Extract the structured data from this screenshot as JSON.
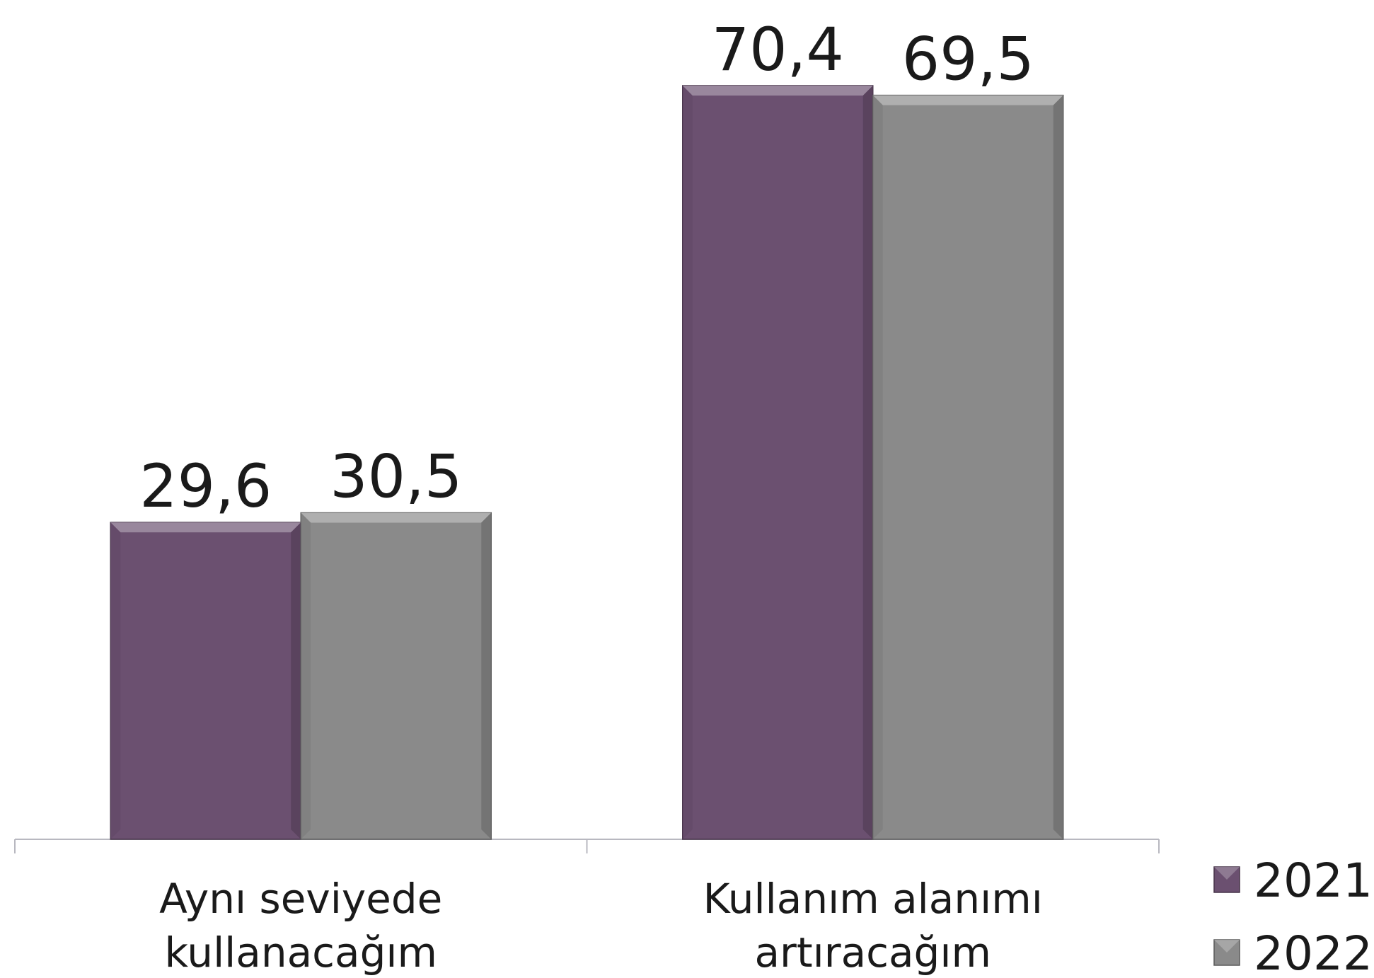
{
  "chart_data": {
    "type": "bar",
    "categories": [
      "Aynı seviyede kullanacağım",
      "Kullanım alanımı artıracağım"
    ],
    "series": [
      {
        "name": "2021",
        "color": "#6b5070",
        "values": [
          29.6,
          70.4
        ],
        "value_labels": [
          "29,6",
          "70,4"
        ]
      },
      {
        "name": "2022",
        "color": "#8a8a8a",
        "values": [
          30.5,
          69.5
        ],
        "value_labels": [
          "30,5",
          "69,5"
        ]
      }
    ],
    "ylim": [
      0,
      78
    ],
    "grid": false,
    "legend": "right"
  }
}
